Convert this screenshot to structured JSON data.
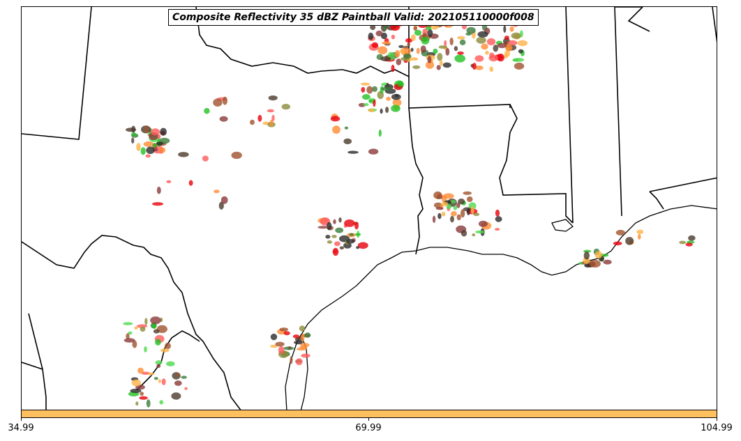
{
  "title": "Composite Reflectivity 35 dBZ Paintball Valid: 202105110000f008",
  "colorbar": {
    "color": "#ffc060",
    "ticks": [
      "34.99",
      "69.99",
      "104.99"
    ]
  },
  "member_colors": [
    "#e8000b",
    "#ff5a5a",
    "#22c022",
    "#4cd84c",
    "#ff8c33",
    "#ffb347",
    "#8b3a3a",
    "#a0522d",
    "#8b8b3a",
    "#4b3a2a",
    "#3a7a3a",
    "#2b2b2b"
  ]
}
